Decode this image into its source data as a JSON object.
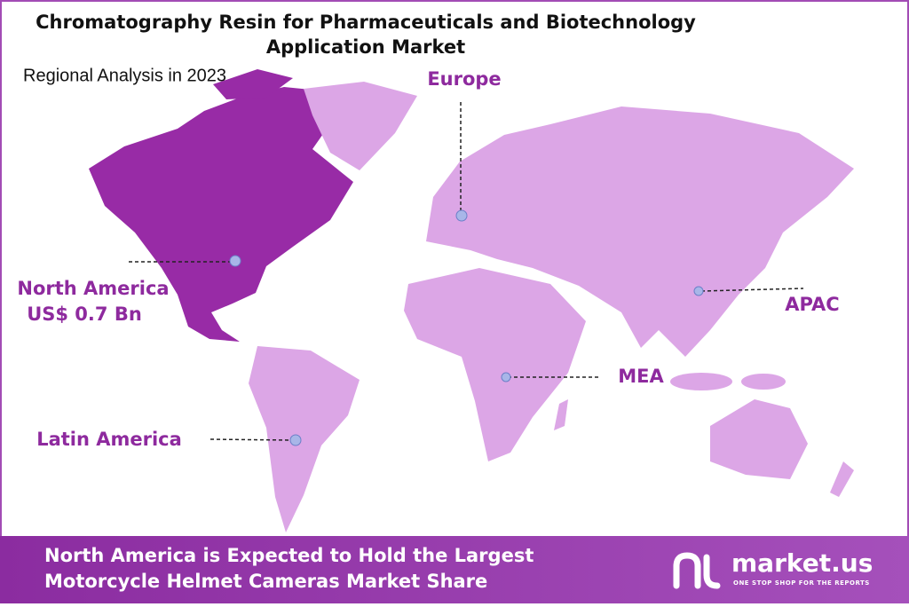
{
  "header": {
    "title_lines": [
      "Chromatography Resin for Pharmaceuticals and Biotechnology",
      "Application Market"
    ],
    "subtitle": "Regional Analysis in 2023"
  },
  "regions": [
    {
      "label": "Europe"
    },
    {
      "label": "North America",
      "value": "US$ 0.7 Bn"
    },
    {
      "label": "APAC"
    },
    {
      "label": "MEA"
    },
    {
      "label": "Latin America"
    }
  ],
  "footer": {
    "lines": [
      "North America is Expected to Hold the Largest",
      "Motorcycle Helmet Cameras Market Share"
    ],
    "brand": "market.us",
    "tagline": "ONE STOP SHOP FOR THE REPORTS"
  }
}
